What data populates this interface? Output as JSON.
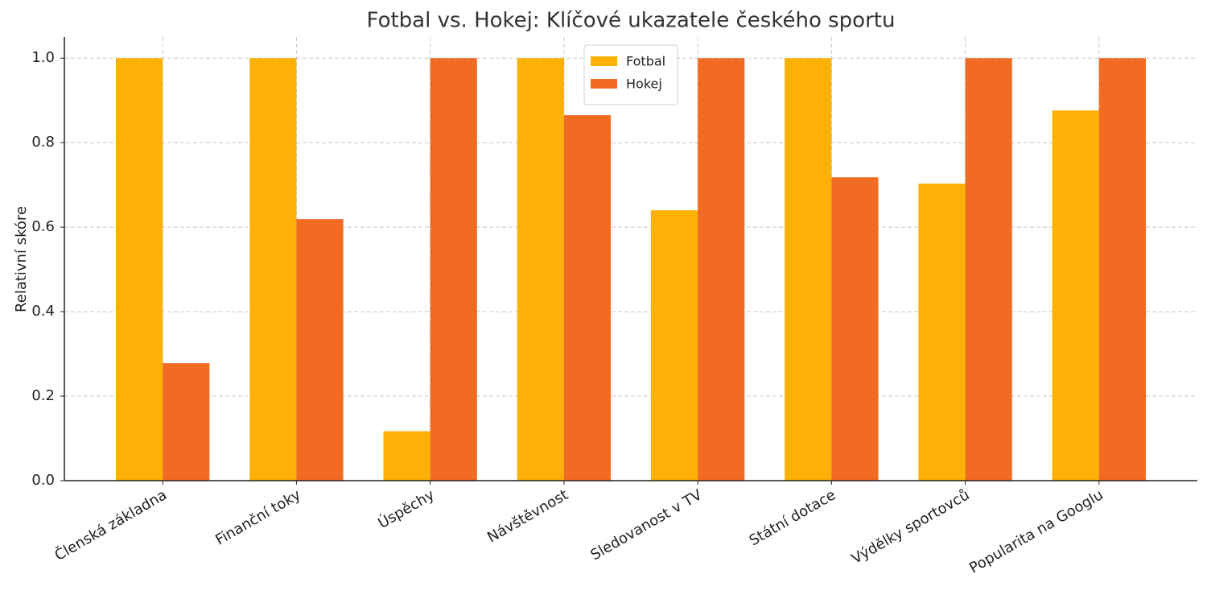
{
  "chart_data": {
    "type": "bar",
    "title": "Fotbal vs. Hokej: Klíčové ukazatele českého sportu",
    "ylabel": "Relativní skóre",
    "categories": [
      "Členská základna",
      "Finanční toky",
      "Úspěchy",
      "Návštěvnost",
      "Sledovanost v TV",
      "Státní dotace",
      "Výdělky sportovců",
      "Popularita na Googlu"
    ],
    "series": [
      {
        "name": "Fotbal",
        "color": "#fdb005",
        "values": [
          1.0,
          1.0,
          0.117,
          1.0,
          0.64,
          1.0,
          0.703,
          0.876
        ]
      },
      {
        "name": "Hokej",
        "color": "#f26b22",
        "values": [
          0.278,
          0.619,
          1.0,
          0.865,
          1.0,
          0.718,
          1.0,
          1.0
        ]
      }
    ],
    "ylim": [
      0,
      1.05
    ],
    "yticks": [
      {
        "value": 0,
        "label": "0.0"
      },
      {
        "value": 0.2,
        "label": "0.2"
      },
      {
        "value": 0.4,
        "label": "0.4"
      },
      {
        "value": 0.6,
        "label": "0.6"
      },
      {
        "value": 0.8,
        "label": "0.8"
      },
      {
        "value": 1,
        "label": "1.0"
      }
    ],
    "grid": true,
    "legend": "upper center"
  }
}
